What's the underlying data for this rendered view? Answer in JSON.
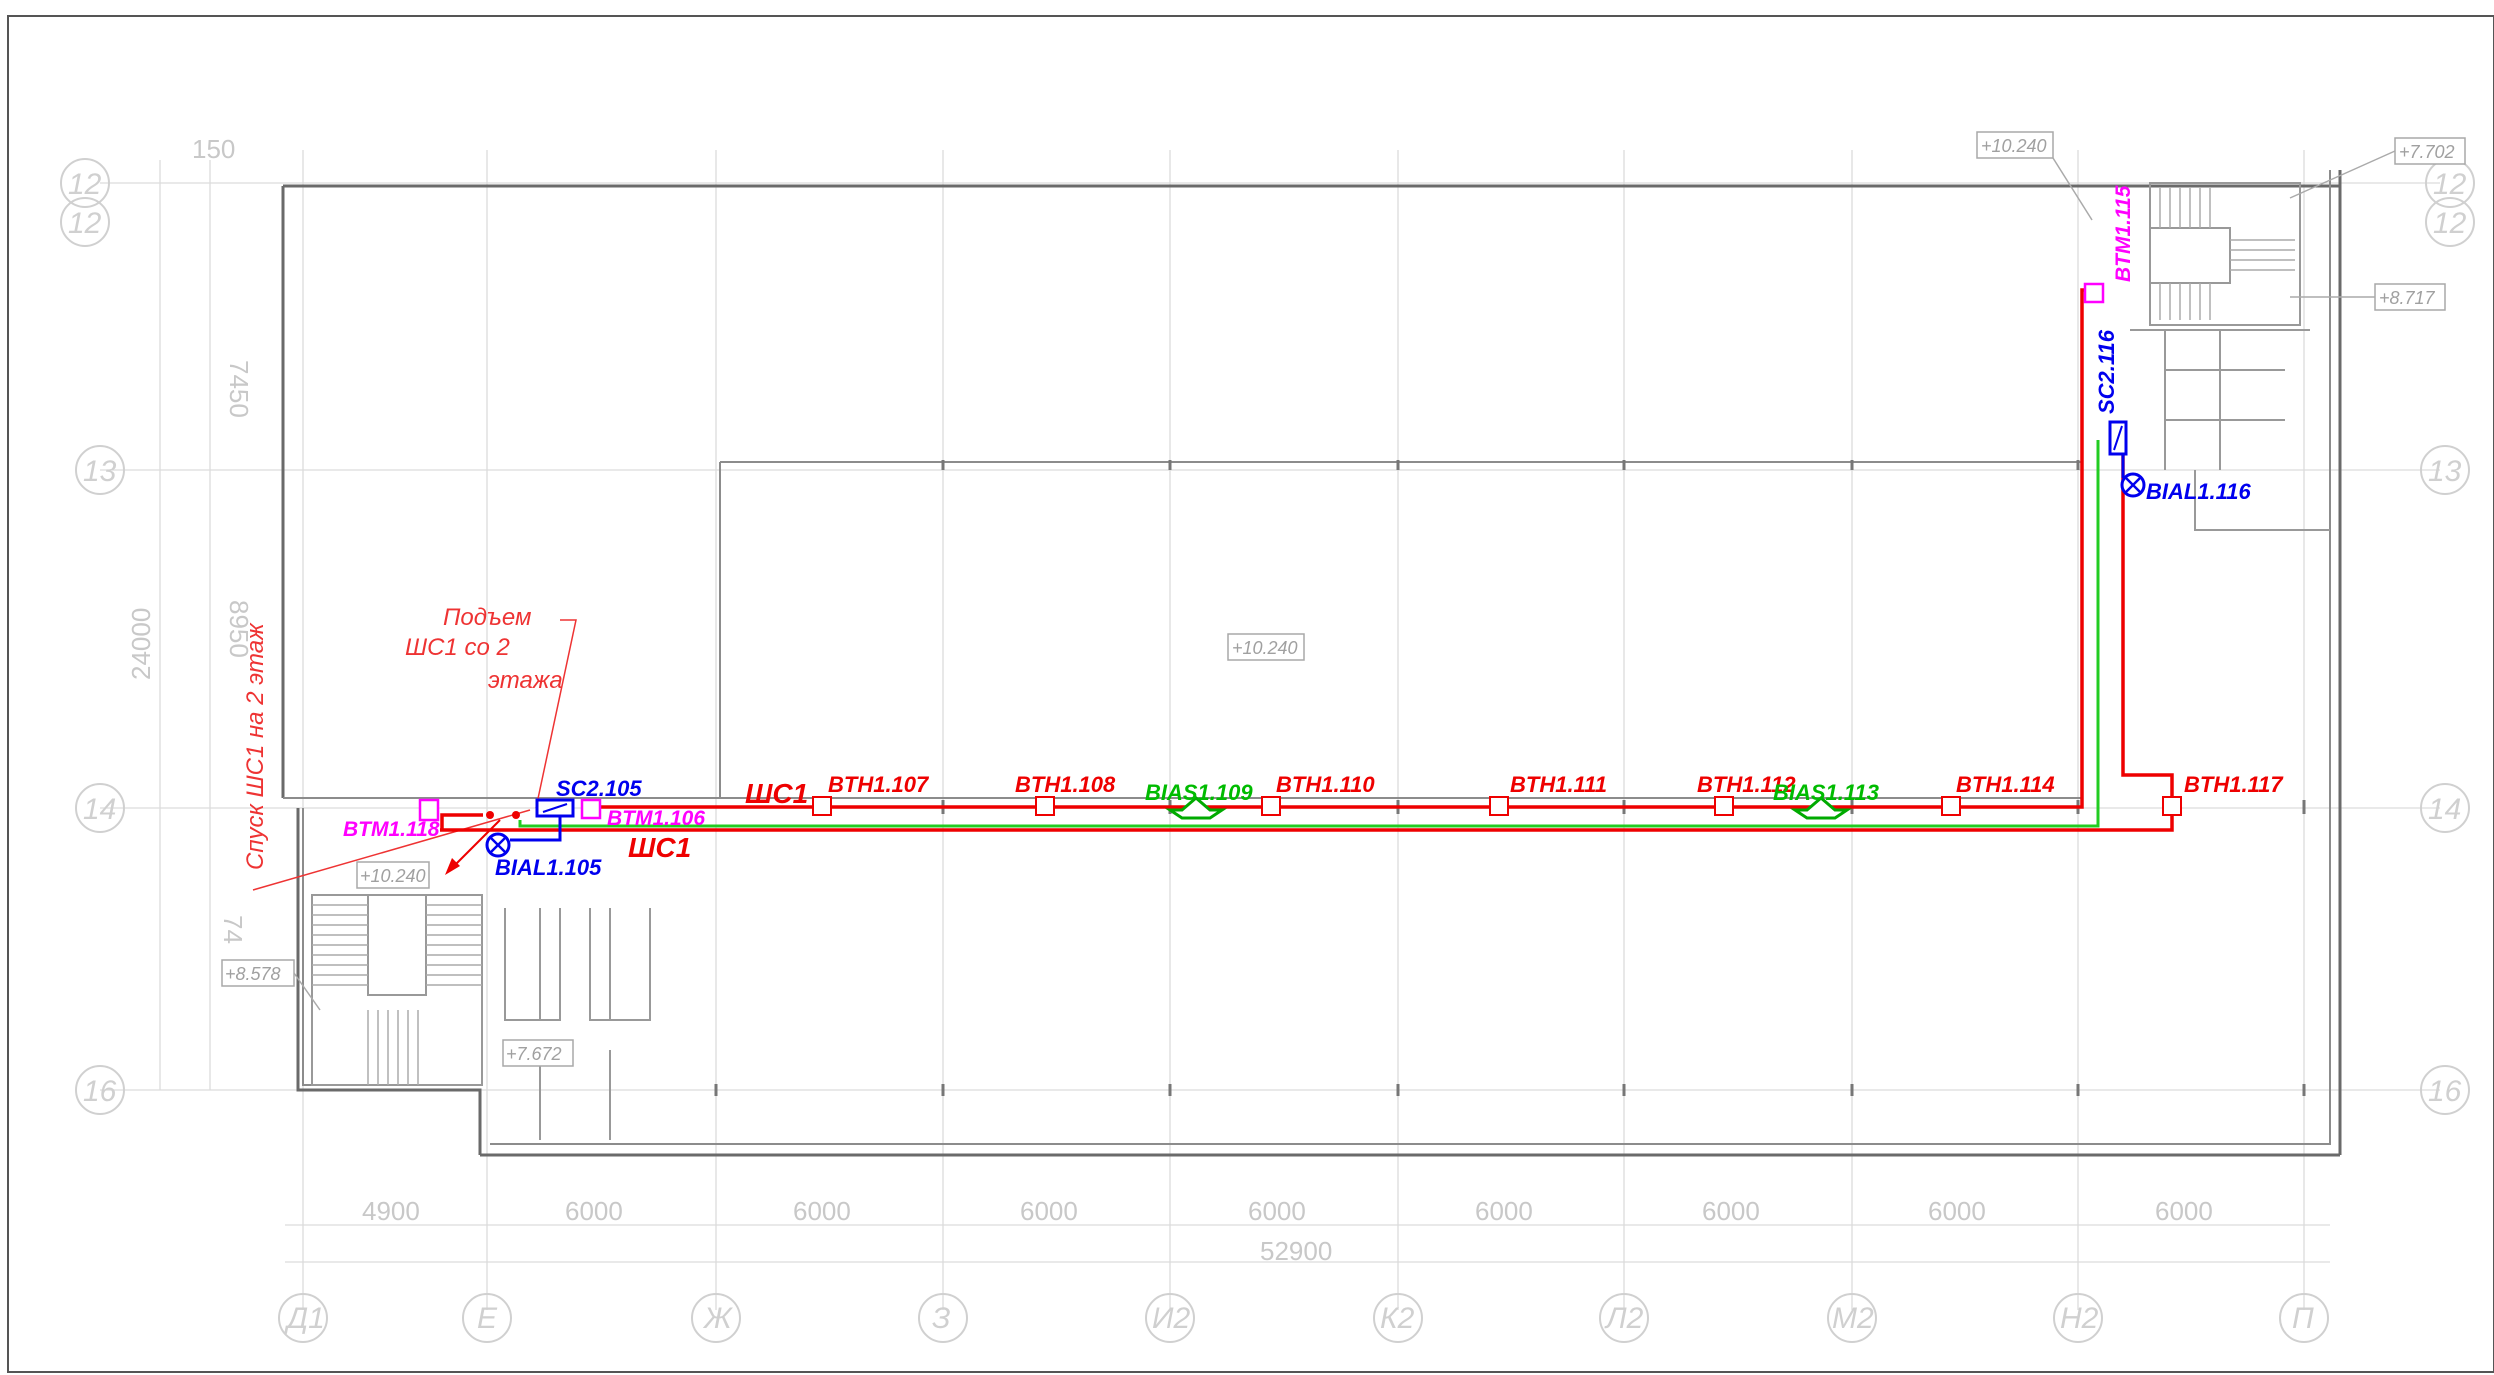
{
  "dimensions": {
    "top_small": "150",
    "left_7450_top": "7450",
    "left_8950": "8950",
    "left_24000": "24000",
    "left_74_bottom": "74",
    "bottom": [
      "4900",
      "6000",
      "6000",
      "6000",
      "6000",
      "6000",
      "6000",
      "6000",
      "6000"
    ],
    "total": "52900"
  },
  "axes": {
    "rows": [
      {
        "label": "12",
        "row": "top"
      },
      {
        "label": "13",
        "row": "mid1"
      },
      {
        "label": "14",
        "row": "mid2"
      },
      {
        "label": "16",
        "row": "bottom"
      }
    ],
    "cols": [
      "Д1",
      "Е",
      "Ж",
      "З",
      "И2",
      "К2",
      "Л2",
      "М2",
      "Н2",
      "П"
    ]
  },
  "levels": {
    "hall": "+10.240",
    "top_right_a": "+10.240",
    "top_right_b": "+7.702",
    "top_right_c": "+8.717",
    "stair_left_a": "+10.240",
    "stair_left_b": "+8.578",
    "stair_left_c": "+7.672"
  },
  "notes": {
    "rise": [
      "Подъем",
      "ШС1  со 2",
      "этажа"
    ],
    "descent": "Спуск  ШС1  на 2  этаж"
  },
  "loop": {
    "label_top": "ШС1",
    "label_bottom": "ШС1"
  },
  "devices": {
    "red": [
      "BTH1.107",
      "BTH1.108",
      "BTH1.110",
      "BTH1.111",
      "BTH1.112",
      "BTH1.114",
      "BTH1.117"
    ],
    "magenta": [
      "BTM1.118",
      "BTM1.106",
      "BTM1.115"
    ],
    "blue": [
      "SC2.105",
      "BIAL1.105",
      "SC2.116",
      "BIAL1.116"
    ],
    "green": [
      "BIAS1.109",
      "BIAS1.113"
    ]
  },
  "colors": {
    "loop_red": "#ee0000",
    "manual_magenta": "#ff00ff",
    "sounder_blue": "#0000ee",
    "siren_green": "#22cc22"
  }
}
